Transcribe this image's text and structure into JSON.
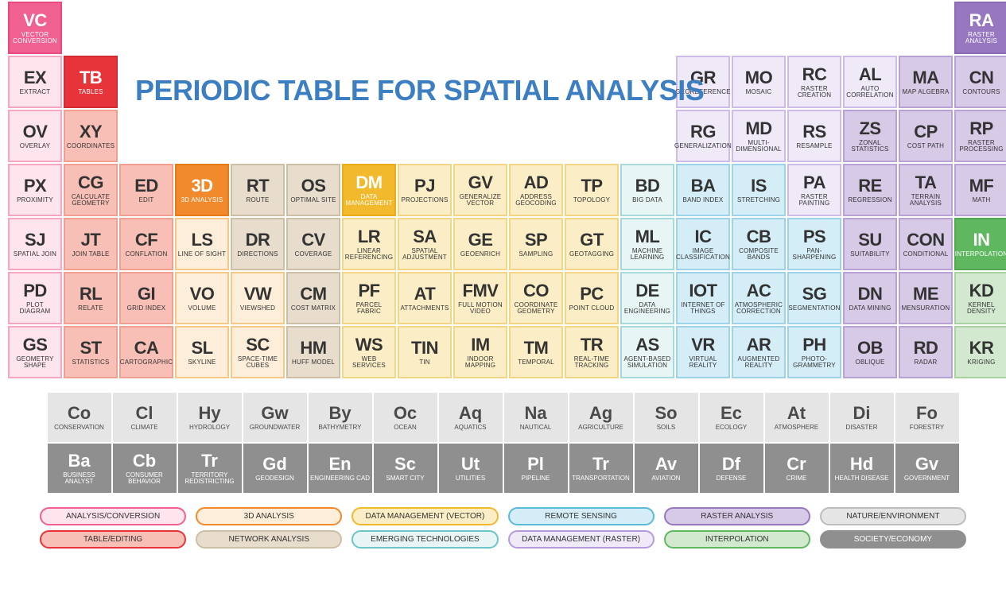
{
  "title": "PERIODIC TABLE FOR SPATIAL ANALYSIS",
  "colors": {
    "pink_strong": {
      "bg": "#f06090",
      "bd": "#e84a7e",
      "fg": "#ffffff"
    },
    "pink_light": {
      "bg": "#fde4ed",
      "bd": "#f6a6c1",
      "fg": "#333333"
    },
    "red_strong": {
      "bg": "#e6343a",
      "bd": "#d22b31",
      "fg": "#ffffff"
    },
    "red_light": {
      "bg": "#f8bfb6",
      "bd": "#f19e93",
      "fg": "#333333"
    },
    "orange_strong": {
      "bg": "#f08a2c",
      "bd": "#e77b18",
      "fg": "#ffffff"
    },
    "orange_light": {
      "bg": "#fdeeda",
      "bd": "#f6c887",
      "fg": "#333333"
    },
    "tan": {
      "bg": "#e8ddcc",
      "bd": "#cdbfa5",
      "fg": "#333333"
    },
    "yellow_strong": {
      "bg": "#f2b92c",
      "bd": "#e9ac17",
      "fg": "#ffffff"
    },
    "yellow_light": {
      "bg": "#fbeec6",
      "bd": "#f3d582",
      "fg": "#333333"
    },
    "teal": {
      "bg": "#e8f5f5",
      "bd": "#a6d9da",
      "fg": "#333333"
    },
    "sky": {
      "bg": "#d5edf6",
      "bd": "#9cd3e8",
      "fg": "#333333"
    },
    "lavender": {
      "bg": "#efe9f8",
      "bd": "#cdbbe9",
      "fg": "#333333"
    },
    "violet_strong": {
      "bg": "#9778c0",
      "bd": "#8a6ab6",
      "fg": "#ffffff"
    },
    "violet_light": {
      "bg": "#d7cae7",
      "bd": "#b8a1d5",
      "fg": "#333333"
    },
    "green_strong": {
      "bg": "#5fb760",
      "bd": "#4fa850",
      "fg": "#ffffff"
    },
    "green_light": {
      "bg": "#d2e9cf",
      "bd": "#a6d3a0",
      "fg": "#333333"
    },
    "grey_light": {
      "bg": "#e5e5e5",
      "bd": "#bdbdbd",
      "fg": "#4a4a4a"
    },
    "grey_dark": {
      "bg": "#8f8f8f",
      "bd": "#8f8f8f",
      "fg": "#ffffff"
    }
  },
  "cells": [
    {
      "r": 1,
      "c": 1,
      "sym": "VC",
      "lbl": "VECTOR CONVERSION",
      "color": "pink_strong",
      "inv": true
    },
    {
      "r": 1,
      "c": 18,
      "sym": "RA",
      "lbl": "RASTER ANALYSIS",
      "color": "violet_strong",
      "inv": true
    },
    {
      "r": 2,
      "c": 1,
      "sym": "EX",
      "lbl": "EXTRACT",
      "color": "pink_light"
    },
    {
      "r": 2,
      "c": 2,
      "sym": "TB",
      "lbl": "TABLES",
      "color": "red_strong",
      "inv": true
    },
    {
      "r": 2,
      "c": 13,
      "sym": "GR",
      "lbl": "GEOREFERENCE",
      "color": "lavender"
    },
    {
      "r": 2,
      "c": 14,
      "sym": "MO",
      "lbl": "MOSAIC",
      "color": "lavender"
    },
    {
      "r": 2,
      "c": 15,
      "sym": "RC",
      "lbl": "RASTER CREATION",
      "color": "lavender"
    },
    {
      "r": 2,
      "c": 16,
      "sym": "AL",
      "lbl": "AUTO CORRELATION",
      "color": "lavender"
    },
    {
      "r": 2,
      "c": 17,
      "sym": "MA",
      "lbl": "MAP ALGEBRA",
      "color": "violet_light"
    },
    {
      "r": 2,
      "c": 18,
      "sym": "CN",
      "lbl": "CONTOURS",
      "color": "violet_light"
    },
    {
      "r": 3,
      "c": 1,
      "sym": "OV",
      "lbl": "OVERLAY",
      "color": "pink_light"
    },
    {
      "r": 3,
      "c": 2,
      "sym": "XY",
      "lbl": "COORDINATES",
      "color": "red_light"
    },
    {
      "r": 3,
      "c": 13,
      "sym": "RG",
      "lbl": "GENERALIZATION",
      "color": "lavender"
    },
    {
      "r": 3,
      "c": 14,
      "sym": "MD",
      "lbl": "MULTI-DIMENSIONAL",
      "color": "lavender"
    },
    {
      "r": 3,
      "c": 15,
      "sym": "RS",
      "lbl": "RESAMPLE",
      "color": "lavender"
    },
    {
      "r": 3,
      "c": 16,
      "sym": "ZS",
      "lbl": "ZONAL STATISTICS",
      "color": "violet_light"
    },
    {
      "r": 3,
      "c": 17,
      "sym": "CP",
      "lbl": "COST PATH",
      "color": "violet_light"
    },
    {
      "r": 3,
      "c": 18,
      "sym": "RP",
      "lbl": "RASTER PROCESSING",
      "color": "violet_light"
    },
    {
      "r": 4,
      "c": 1,
      "sym": "PX",
      "lbl": "PROXIMITY",
      "color": "pink_light"
    },
    {
      "r": 4,
      "c": 2,
      "sym": "CG",
      "lbl": "CALCULATE GEOMETRY",
      "color": "red_light"
    },
    {
      "r": 4,
      "c": 3,
      "sym": "ED",
      "lbl": "EDIT",
      "color": "red_light"
    },
    {
      "r": 4,
      "c": 4,
      "sym": "3D",
      "lbl": "3D ANALYSIS",
      "color": "orange_strong",
      "inv": true
    },
    {
      "r": 4,
      "c": 5,
      "sym": "RT",
      "lbl": "ROUTE",
      "color": "tan"
    },
    {
      "r": 4,
      "c": 6,
      "sym": "OS",
      "lbl": "OPTIMAL SITE",
      "color": "tan"
    },
    {
      "r": 4,
      "c": 7,
      "sym": "DM",
      "lbl": "DATA MANAGEMENT",
      "color": "yellow_strong",
      "inv": true
    },
    {
      "r": 4,
      "c": 8,
      "sym": "PJ",
      "lbl": "PROJECTIONS",
      "color": "yellow_light"
    },
    {
      "r": 4,
      "c": 9,
      "sym": "GV",
      "lbl": "GENERALIZE VECTOR",
      "color": "yellow_light"
    },
    {
      "r": 4,
      "c": 10,
      "sym": "AD",
      "lbl": "ADDRESS GEOCODING",
      "color": "yellow_light"
    },
    {
      "r": 4,
      "c": 11,
      "sym": "TP",
      "lbl": "TOPOLOGY",
      "color": "yellow_light"
    },
    {
      "r": 4,
      "c": 12,
      "sym": "BD",
      "lbl": "BIG DATA",
      "color": "teal"
    },
    {
      "r": 4,
      "c": 13,
      "sym": "BA",
      "lbl": "BAND INDEX",
      "color": "sky"
    },
    {
      "r": 4,
      "c": 14,
      "sym": "IS",
      "lbl": "STRETCHING",
      "color": "sky"
    },
    {
      "r": 4,
      "c": 15,
      "sym": "PA",
      "lbl": "RASTER PAINTING",
      "color": "lavender"
    },
    {
      "r": 4,
      "c": 16,
      "sym": "RE",
      "lbl": "REGRESSION",
      "color": "violet_light"
    },
    {
      "r": 4,
      "c": 17,
      "sym": "TA",
      "lbl": "TERRAIN ANALYSIS",
      "color": "violet_light"
    },
    {
      "r": 4,
      "c": 18,
      "sym": "MF",
      "lbl": "MATH",
      "color": "violet_light"
    },
    {
      "r": 5,
      "c": 1,
      "sym": "SJ",
      "lbl": "SPATIAL JOIN",
      "color": "pink_light"
    },
    {
      "r": 5,
      "c": 2,
      "sym": "JT",
      "lbl": "JOIN TABLE",
      "color": "red_light"
    },
    {
      "r": 5,
      "c": 3,
      "sym": "CF",
      "lbl": "CONFLATION",
      "color": "red_light"
    },
    {
      "r": 5,
      "c": 4,
      "sym": "LS",
      "lbl": "LINE OF SIGHT",
      "color": "orange_light"
    },
    {
      "r": 5,
      "c": 5,
      "sym": "DR",
      "lbl": "DIRECTIONS",
      "color": "tan"
    },
    {
      "r": 5,
      "c": 6,
      "sym": "CV",
      "lbl": "COVERAGE",
      "color": "tan"
    },
    {
      "r": 5,
      "c": 7,
      "sym": "LR",
      "lbl": "LINEAR REFERENCING",
      "color": "yellow_light"
    },
    {
      "r": 5,
      "c": 8,
      "sym": "SA",
      "lbl": "SPATIAL ADJUSTMENT",
      "color": "yellow_light"
    },
    {
      "r": 5,
      "c": 9,
      "sym": "GE",
      "lbl": "GEOENRICH",
      "color": "yellow_light"
    },
    {
      "r": 5,
      "c": 10,
      "sym": "SP",
      "lbl": "SAMPLING",
      "color": "yellow_light"
    },
    {
      "r": 5,
      "c": 11,
      "sym": "GT",
      "lbl": "GEOTAGGING",
      "color": "yellow_light"
    },
    {
      "r": 5,
      "c": 12,
      "sym": "ML",
      "lbl": "MACHINE LEARNING",
      "color": "teal"
    },
    {
      "r": 5,
      "c": 13,
      "sym": "IC",
      "lbl": "IMAGE CLASSIFICATION",
      "color": "sky"
    },
    {
      "r": 5,
      "c": 14,
      "sym": "CB",
      "lbl": "COMPOSITE BANDS",
      "color": "sky"
    },
    {
      "r": 5,
      "c": 15,
      "sym": "PS",
      "lbl": "PAN-SHARPENING",
      "color": "sky"
    },
    {
      "r": 5,
      "c": 16,
      "sym": "SU",
      "lbl": "SUITABILITY",
      "color": "violet_light"
    },
    {
      "r": 5,
      "c": 17,
      "sym": "CON",
      "lbl": "CONDITIONAL",
      "color": "violet_light"
    },
    {
      "r": 5,
      "c": 18,
      "sym": "IN",
      "lbl": "INTERPOLATION",
      "color": "green_strong",
      "inv": true
    },
    {
      "r": 6,
      "c": 1,
      "sym": "PD",
      "lbl": "PLOT DIAGRAM",
      "color": "pink_light"
    },
    {
      "r": 6,
      "c": 2,
      "sym": "RL",
      "lbl": "RELATE",
      "color": "red_light"
    },
    {
      "r": 6,
      "c": 3,
      "sym": "GI",
      "lbl": "GRID INDEX",
      "color": "red_light"
    },
    {
      "r": 6,
      "c": 4,
      "sym": "VO",
      "lbl": "VOLUME",
      "color": "orange_light"
    },
    {
      "r": 6,
      "c": 5,
      "sym": "VW",
      "lbl": "VIEWSHED",
      "color": "orange_light"
    },
    {
      "r": 6,
      "c": 6,
      "sym": "CM",
      "lbl": "COST MATRIX",
      "color": "tan"
    },
    {
      "r": 6,
      "c": 7,
      "sym": "PF",
      "lbl": "PARCEL FABRIC",
      "color": "yellow_light"
    },
    {
      "r": 6,
      "c": 8,
      "sym": "AT",
      "lbl": "ATTACHMENTS",
      "color": "yellow_light"
    },
    {
      "r": 6,
      "c": 9,
      "sym": "FMV",
      "lbl": "FULL MOTION VIDEO",
      "color": "yellow_light"
    },
    {
      "r": 6,
      "c": 10,
      "sym": "CO",
      "lbl": "COORDINATE GEOMETRY",
      "color": "yellow_light"
    },
    {
      "r": 6,
      "c": 11,
      "sym": "PC",
      "lbl": "POINT CLOUD",
      "color": "yellow_light"
    },
    {
      "r": 6,
      "c": 12,
      "sym": "DE",
      "lbl": "DATA ENGINEERING",
      "color": "teal"
    },
    {
      "r": 6,
      "c": 13,
      "sym": "IOT",
      "lbl": "INTERNET OF THINGS",
      "color": "sky"
    },
    {
      "r": 6,
      "c": 14,
      "sym": "AC",
      "lbl": "ATMOSPHERIC CORRECTION",
      "color": "sky"
    },
    {
      "r": 6,
      "c": 15,
      "sym": "SG",
      "lbl": "SEGMENTATION",
      "color": "sky"
    },
    {
      "r": 6,
      "c": 16,
      "sym": "DN",
      "lbl": "DATA MINING",
      "color": "violet_light"
    },
    {
      "r": 6,
      "c": 17,
      "sym": "ME",
      "lbl": "MENSURATION",
      "color": "violet_light"
    },
    {
      "r": 6,
      "c": 18,
      "sym": "KD",
      "lbl": "KERNEL DENSITY",
      "color": "green_light"
    },
    {
      "r": 7,
      "c": 1,
      "sym": "GS",
      "lbl": "GEOMETRY SHAPE",
      "color": "pink_light"
    },
    {
      "r": 7,
      "c": 2,
      "sym": "ST",
      "lbl": "STATISTICS",
      "color": "red_light"
    },
    {
      "r": 7,
      "c": 3,
      "sym": "CA",
      "lbl": "CARTOGRAPHIC",
      "color": "red_light"
    },
    {
      "r": 7,
      "c": 4,
      "sym": "SL",
      "lbl": "SKYLINE",
      "color": "orange_light"
    },
    {
      "r": 7,
      "c": 5,
      "sym": "SC",
      "lbl": "SPACE-TIME CUBES",
      "color": "orange_light"
    },
    {
      "r": 7,
      "c": 6,
      "sym": "HM",
      "lbl": "HUFF MODEL",
      "color": "tan"
    },
    {
      "r": 7,
      "c": 7,
      "sym": "WS",
      "lbl": "WEB SERVICES",
      "color": "yellow_light"
    },
    {
      "r": 7,
      "c": 8,
      "sym": "TIN",
      "lbl": "TIN",
      "color": "yellow_light"
    },
    {
      "r": 7,
      "c": 9,
      "sym": "IM",
      "lbl": "INDOOR MAPPING",
      "color": "yellow_light"
    },
    {
      "r": 7,
      "c": 10,
      "sym": "TM",
      "lbl": "TEMPORAL",
      "color": "yellow_light"
    },
    {
      "r": 7,
      "c": 11,
      "sym": "TR",
      "lbl": "REAL-TIME TRACKING",
      "color": "yellow_light"
    },
    {
      "r": 7,
      "c": 12,
      "sym": "AS",
      "lbl": "AGENT-BASED SIMULATION",
      "color": "teal"
    },
    {
      "r": 7,
      "c": 13,
      "sym": "VR",
      "lbl": "VIRTUAL REALITY",
      "color": "sky"
    },
    {
      "r": 7,
      "c": 14,
      "sym": "AR",
      "lbl": "AUGMENTED REALITY",
      "color": "sky"
    },
    {
      "r": 7,
      "c": 15,
      "sym": "PH",
      "lbl": "PHOTO-GRAMMETRY",
      "color": "sky"
    },
    {
      "r": 7,
      "c": 16,
      "sym": "OB",
      "lbl": "OBLIQUE",
      "color": "violet_light"
    },
    {
      "r": 7,
      "c": 17,
      "sym": "RD",
      "lbl": "RADAR",
      "color": "violet_light"
    },
    {
      "r": 7,
      "c": 18,
      "sym": "KR",
      "lbl": "KRIGING",
      "color": "green_light"
    }
  ],
  "lower": [
    {
      "r": 1,
      "sym": "Co",
      "lbl": "CONSERVATION",
      "color": "grey_light"
    },
    {
      "r": 1,
      "sym": "Cl",
      "lbl": "CLIMATE",
      "color": "grey_light"
    },
    {
      "r": 1,
      "sym": "Hy",
      "lbl": "HYDROLOGY",
      "color": "grey_light"
    },
    {
      "r": 1,
      "sym": "Gw",
      "lbl": "GROUNDWATER",
      "color": "grey_light"
    },
    {
      "r": 1,
      "sym": "By",
      "lbl": "BATHYMETRY",
      "color": "grey_light"
    },
    {
      "r": 1,
      "sym": "Oc",
      "lbl": "OCEAN",
      "color": "grey_light"
    },
    {
      "r": 1,
      "sym": "Aq",
      "lbl": "AQUATICS",
      "color": "grey_light"
    },
    {
      "r": 1,
      "sym": "Na",
      "lbl": "NAUTICAL",
      "color": "grey_light"
    },
    {
      "r": 1,
      "sym": "Ag",
      "lbl": "AGRICULTURE",
      "color": "grey_light"
    },
    {
      "r": 1,
      "sym": "So",
      "lbl": "SOILS",
      "color": "grey_light"
    },
    {
      "r": 1,
      "sym": "Ec",
      "lbl": "ECOLOGY",
      "color": "grey_light"
    },
    {
      "r": 1,
      "sym": "At",
      "lbl": "ATMOSPHERE",
      "color": "grey_light"
    },
    {
      "r": 1,
      "sym": "Di",
      "lbl": "DISASTER",
      "color": "grey_light"
    },
    {
      "r": 1,
      "sym": "Fo",
      "lbl": "FORESTRY",
      "color": "grey_light"
    },
    {
      "r": 2,
      "sym": "Ba",
      "lbl": "BUSINESS ANALYST",
      "color": "grey_dark",
      "inv": true
    },
    {
      "r": 2,
      "sym": "Cb",
      "lbl": "CONSUMER BEHAVIOR",
      "color": "grey_dark",
      "inv": true
    },
    {
      "r": 2,
      "sym": "Tr",
      "lbl": "TERRITORY REDISTRICTING",
      "color": "grey_dark",
      "inv": true
    },
    {
      "r": 2,
      "sym": "Gd",
      "lbl": "GEODESIGN",
      "color": "grey_dark",
      "inv": true
    },
    {
      "r": 2,
      "sym": "En",
      "lbl": "ENGINEERING CAD",
      "color": "grey_dark",
      "inv": true
    },
    {
      "r": 2,
      "sym": "Sc",
      "lbl": "SMART CITY",
      "color": "grey_dark",
      "inv": true
    },
    {
      "r": 2,
      "sym": "Ut",
      "lbl": "UTILITIES",
      "color": "grey_dark",
      "inv": true
    },
    {
      "r": 2,
      "sym": "Pl",
      "lbl": "PIPELINE",
      "color": "grey_dark",
      "inv": true
    },
    {
      "r": 2,
      "sym": "Tr",
      "lbl": "TRANSPORTATION",
      "color": "grey_dark",
      "inv": true
    },
    {
      "r": 2,
      "sym": "Av",
      "lbl": "AVIATION",
      "color": "grey_dark",
      "inv": true
    },
    {
      "r": 2,
      "sym": "Df",
      "lbl": "DEFENSE",
      "color": "grey_dark",
      "inv": true
    },
    {
      "r": 2,
      "sym": "Cr",
      "lbl": "CRIME",
      "color": "grey_dark",
      "inv": true
    },
    {
      "r": 2,
      "sym": "Hd",
      "lbl": "HEALTH DISEASE",
      "color": "grey_dark",
      "inv": true
    },
    {
      "r": 2,
      "sym": "Gv",
      "lbl": "GOVERNMENT",
      "color": "grey_dark",
      "inv": true
    }
  ],
  "legend": [
    {
      "label": "ANALYSIS/CONVERSION",
      "border": "#f06090",
      "bg": "#fde4ed"
    },
    {
      "label": "3D ANALYSIS",
      "border": "#f08a2c",
      "bg": "#fdeeda"
    },
    {
      "label": "DATA MANAGEMENT (VECTOR)",
      "border": "#f2b92c",
      "bg": "#fbeec6"
    },
    {
      "label": "REMOTE SENSING",
      "border": "#5bb9d9",
      "bg": "#d5edf6"
    },
    {
      "label": "RASTER ANALYSIS",
      "border": "#9778c0",
      "bg": "#d7cae7"
    },
    {
      "label": "NATURE/ENVIRONMENT",
      "border": "#bdbdbd",
      "bg": "#e5e5e5"
    },
    {
      "label": "TABLE/EDITING",
      "border": "#e6343a",
      "bg": "#f8bfb6"
    },
    {
      "label": "NETWORK ANALYSIS",
      "border": "#cdbfa5",
      "bg": "#e8ddcc"
    },
    {
      "label": "EMERGING TECHNOLOGIES",
      "border": "#6cc6c8",
      "bg": "#e8f5f5"
    },
    {
      "label": "DATA MANAGEMENT (RASTER)",
      "border": "#b69ae0",
      "bg": "#efe9f8"
    },
    {
      "label": "INTERPOLATION",
      "border": "#5fb760",
      "bg": "#d2e9cf"
    },
    {
      "label": "SOCIETY/ECONOMY",
      "border": "#8f8f8f",
      "bg": "#8f8f8f",
      "fg": "#ffffff"
    }
  ]
}
